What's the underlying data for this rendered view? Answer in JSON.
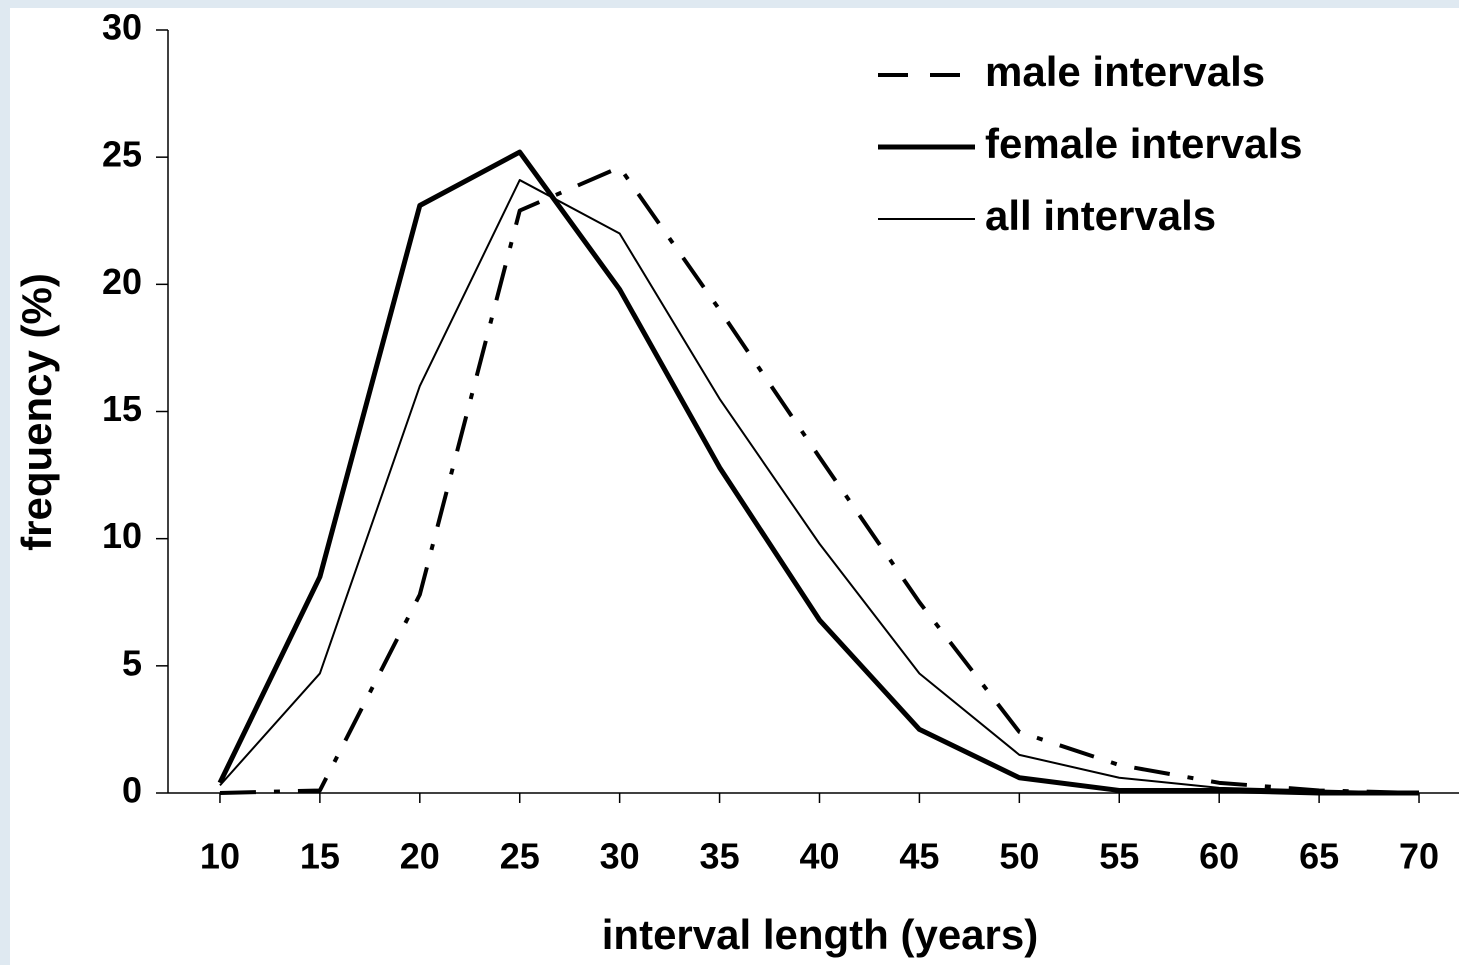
{
  "chart_data": {
    "type": "line",
    "x_label": "interval length (years)",
    "y_label": "frequency (%)",
    "x": [
      10,
      15,
      20,
      25,
      30,
      35,
      40,
      45,
      50,
      55,
      60,
      65,
      70
    ],
    "series": [
      {
        "name": "male intervals",
        "color": "#000000",
        "line_style": "dashed",
        "values": [
          0,
          0.1,
          7.8,
          22.9,
          24.6,
          19,
          13.2,
          7.5,
          2.4,
          1.1,
          0.4,
          0.1,
          0
        ]
      },
      {
        "name": "female intervals",
        "color": "#000000",
        "line_style": "bold",
        "values": [
          0.4,
          8.5,
          23.1,
          25.2,
          19.8,
          12.8,
          6.8,
          2.5,
          0.6,
          0.1,
          0.1,
          0,
          0
        ]
      },
      {
        "name": "all intervals",
        "color": "#000000",
        "line_style": "thin",
        "values": [
          0.3,
          4.7,
          16,
          24.1,
          22,
          15.5,
          9.8,
          4.7,
          1.5,
          0.6,
          0.2,
          0.1,
          0
        ]
      }
    ],
    "xlim": [
      7.4,
      72
    ],
    "xticks": [
      10,
      15,
      20,
      25,
      30,
      35,
      40,
      45,
      50,
      55,
      60,
      65,
      70
    ],
    "ylim": [
      0,
      30
    ],
    "yticks": [
      0,
      5,
      10,
      15,
      20,
      25,
      30
    ],
    "legend": "upper right",
    "grid": false
  }
}
